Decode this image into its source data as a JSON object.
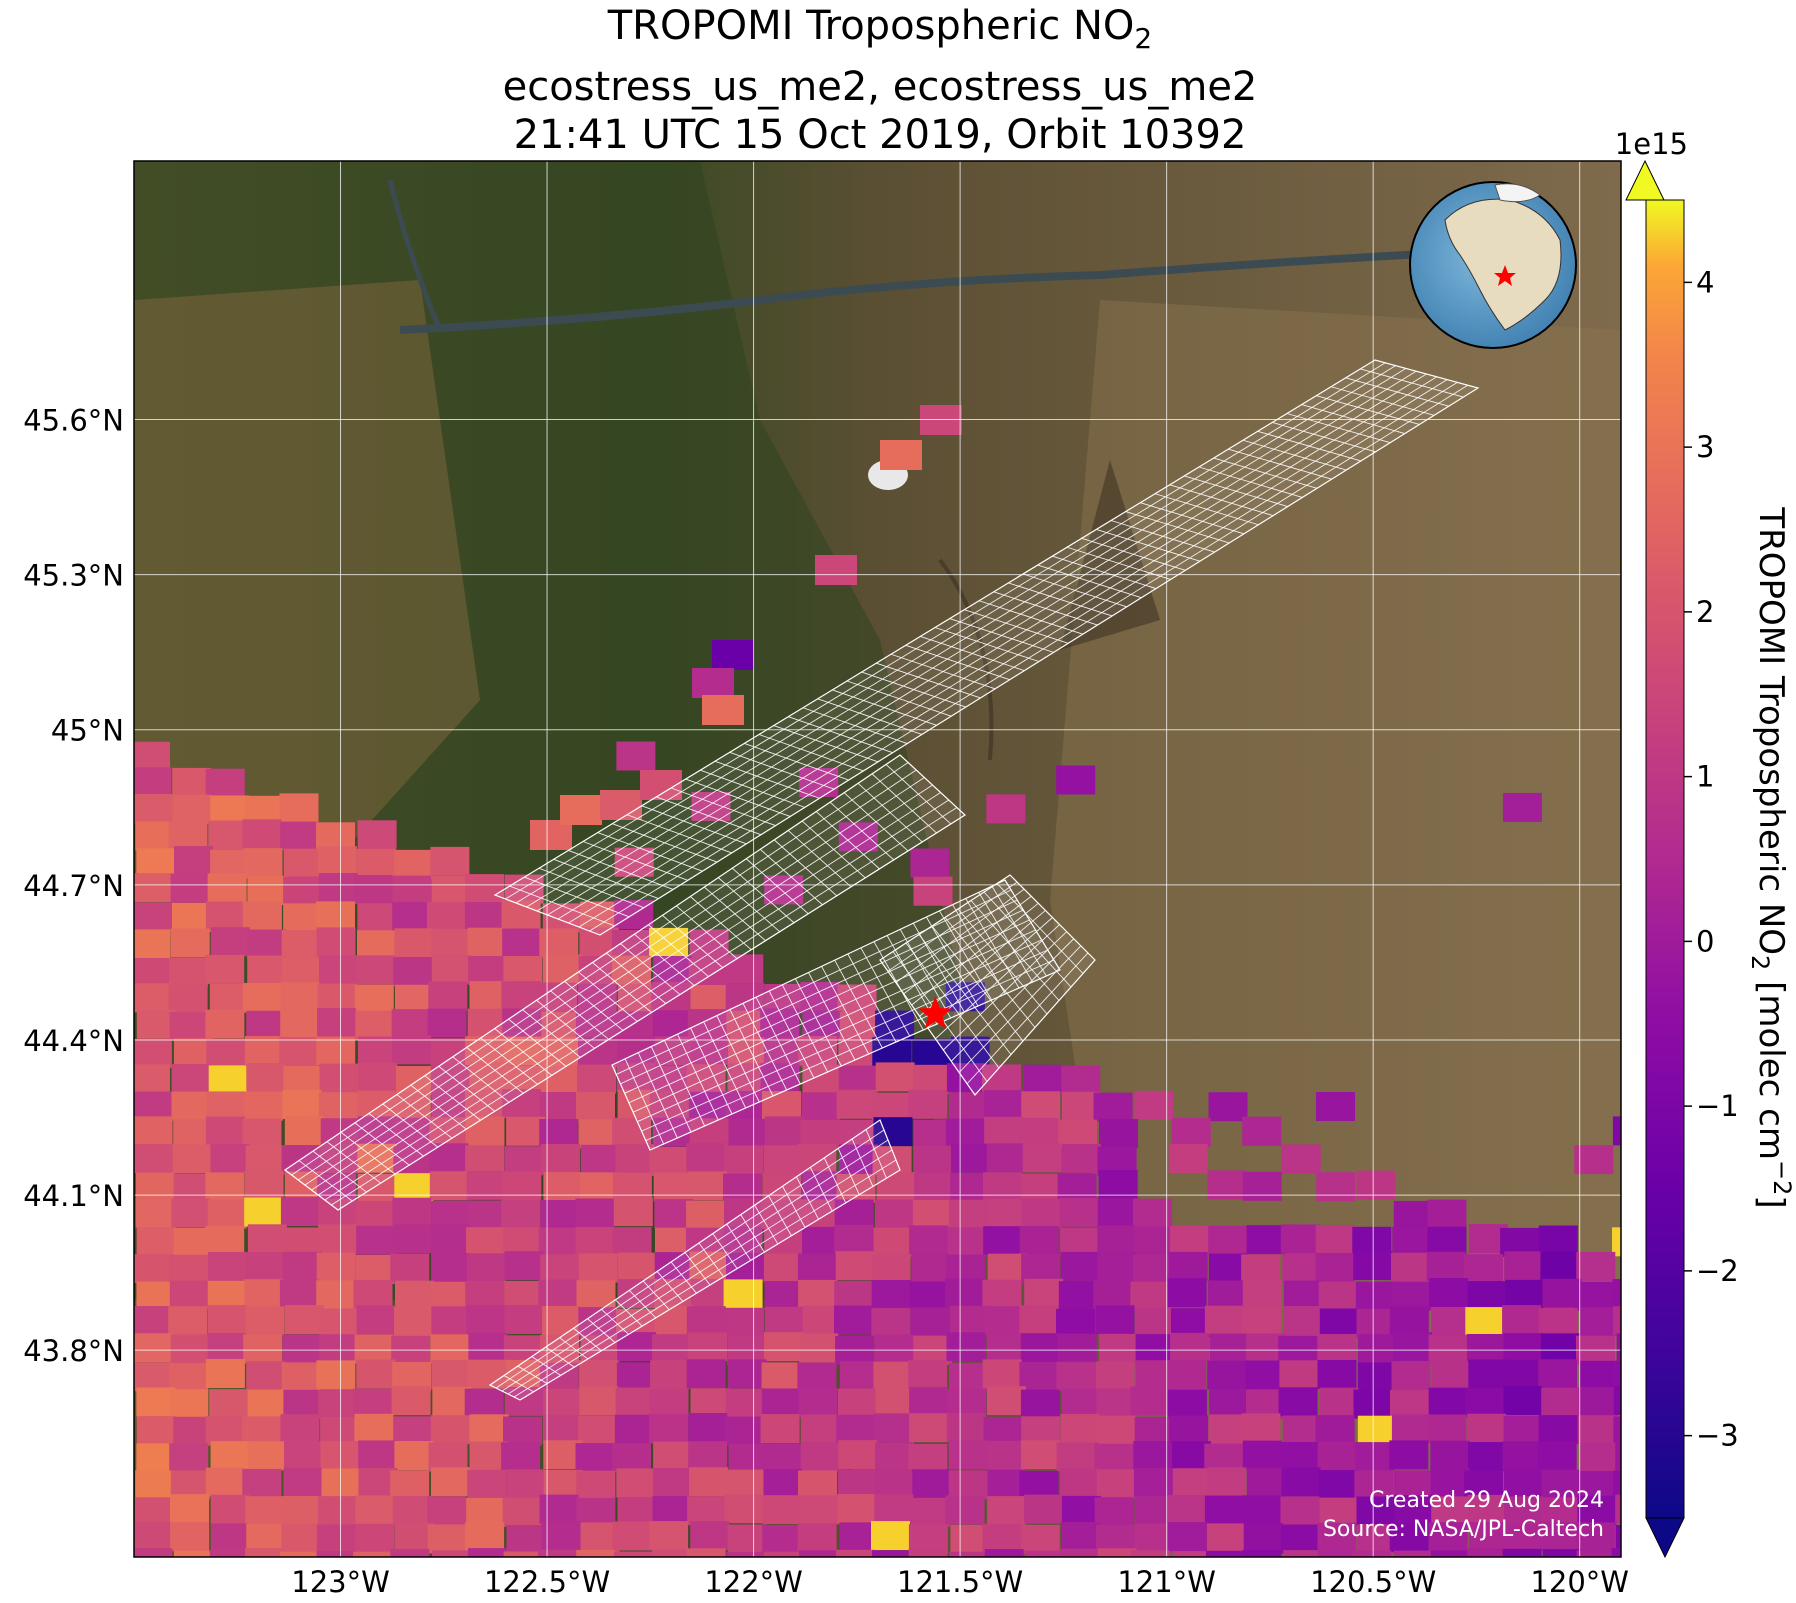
{
  "title": {
    "line1_main": "TROPOMI Tropospheric NO",
    "line1_sub": "2",
    "line2": "ecostress_us_me2, ecostress_us_me2",
    "line3": "21:41 UTC 15 Oct 2019, Orbit 10392"
  },
  "map": {
    "lon_range": [
      -123.5,
      -119.9
    ],
    "lat_range": [
      43.4,
      46.1
    ],
    "x_ticks": [
      {
        "lon": -123.0,
        "label": "123°W"
      },
      {
        "lon": -122.5,
        "label": "122.5°W"
      },
      {
        "lon": -122.0,
        "label": "122°W"
      },
      {
        "lon": -121.5,
        "label": "121.5°W"
      },
      {
        "lon": -121.0,
        "label": "121°W"
      },
      {
        "lon": -120.5,
        "label": "120.5°W"
      },
      {
        "lon": -120.0,
        "label": "120°W"
      }
    ],
    "y_ticks": [
      {
        "lat": 45.6,
        "label": "45.6°N"
      },
      {
        "lat": 45.3,
        "label": "45.3°N"
      },
      {
        "lat": 45.0,
        "label": "45°N"
      },
      {
        "lat": 44.7,
        "label": "44.7°N"
      },
      {
        "lat": 44.4,
        "label": "44.4°N"
      },
      {
        "lat": 44.1,
        "label": "44.1°N"
      },
      {
        "lat": 43.8,
        "label": "43.8°N"
      }
    ],
    "grid": true,
    "site_marker": {
      "lon": -121.56,
      "lat": 44.45,
      "color": "#ff0000",
      "icon": "star-icon"
    },
    "basemap": "satellite-imagery",
    "overlay": "ecostress-footprint-grid",
    "inset": "globe-locator-icon"
  },
  "colorbar": {
    "label_main": "TROPOMI Tropospheric NO",
    "label_sub": "2",
    "label_units_pre": " [molec cm",
    "label_units_sup": "−2",
    "label_units_post": "]",
    "scale_text": "1e15",
    "range": [
      -3.5,
      4.5
    ],
    "ticks": [
      {
        "value": 4,
        "label": "4"
      },
      {
        "value": 3,
        "label": "3"
      },
      {
        "value": 2,
        "label": "2"
      },
      {
        "value": 1,
        "label": "1"
      },
      {
        "value": 0,
        "label": "0"
      },
      {
        "value": -1,
        "label": "−1"
      },
      {
        "value": -2,
        "label": "−2"
      },
      {
        "value": -3,
        "label": "−3"
      }
    ],
    "colormap": "plasma",
    "extend": "both"
  },
  "credits": {
    "line1": "Created 29 Aug 2024",
    "line2": "Source: NASA/JPL-Caltech"
  }
}
